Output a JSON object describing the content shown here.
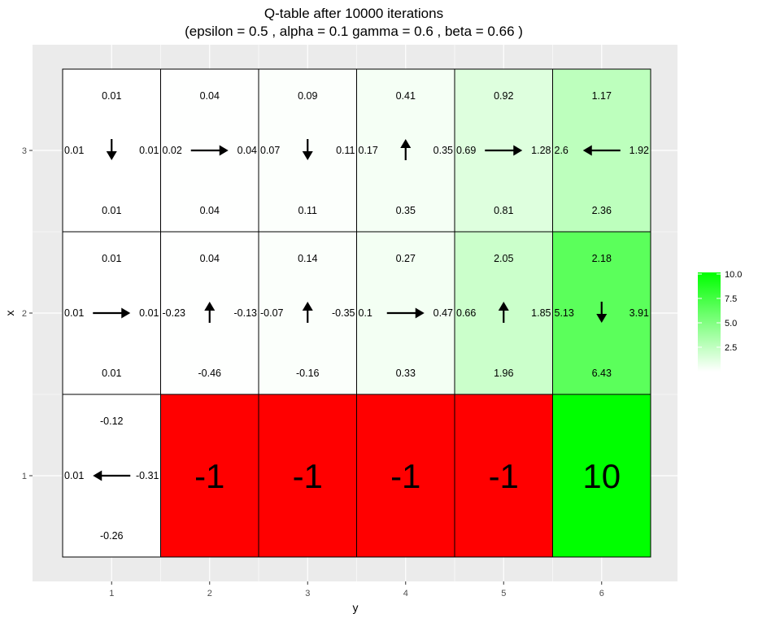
{
  "chart_data": {
    "type": "heatmap",
    "title": "Q-table after  10000  iterations",
    "subtitle": "(epsilon =  0.5 , alpha =  0.1 gamma =  0.6 , beta =  0.66 )",
    "xlabel": "y",
    "ylabel": "x",
    "x_ticks": [
      "1",
      "2",
      "3",
      "4",
      "5",
      "6"
    ],
    "y_ticks": [
      "1",
      "2",
      "3"
    ],
    "grid": true,
    "legend": {
      "position": "right",
      "ticks": [
        "2.5",
        "5.0",
        "7.5",
        "10.0"
      ],
      "tick_values": [
        2.5,
        5.0,
        7.5,
        10.0
      ],
      "min": 0,
      "max": 10,
      "low_color": "#ffffff",
      "high_color": "#00ff00"
    },
    "colors": {
      "negative_reward": "#ff0000",
      "panel_background": "#ebebeb",
      "gridline": "#ffffff"
    },
    "cells": [
      {
        "x": 3,
        "y": 1,
        "up": "0.01",
        "down": "0.01",
        "left": "0.01",
        "right": "0.01",
        "arrow": "down",
        "value": 0.01
      },
      {
        "x": 3,
        "y": 2,
        "up": "0.04",
        "down": "0.04",
        "left": "0.02",
        "right": "0.04",
        "arrow": "right",
        "value": 0.04
      },
      {
        "x": 3,
        "y": 3,
        "up": "0.09",
        "down": "0.11",
        "left": "0.07",
        "right": "0.11",
        "arrow": "down",
        "value": 0.11
      },
      {
        "x": 3,
        "y": 4,
        "up": "0.41",
        "down": "0.35",
        "left": "0.17",
        "right": "0.35",
        "arrow": "up",
        "value": 0.41
      },
      {
        "x": 3,
        "y": 5,
        "up": "0.92",
        "down": "0.81",
        "left": "0.69",
        "right": "1.28",
        "arrow": "right",
        "value": 1.28
      },
      {
        "x": 3,
        "y": 6,
        "up": "1.17",
        "down": "2.36",
        "left": "2.6",
        "right": "1.92",
        "arrow": "left",
        "value": 2.6
      },
      {
        "x": 2,
        "y": 1,
        "up": "0.01",
        "down": "0.01",
        "left": "0.01",
        "right": "0.01",
        "arrow": "right",
        "value": 0.01
      },
      {
        "x": 2,
        "y": 2,
        "up": "0.04",
        "down": "-0.46",
        "left": "-0.23",
        "right": "-0.13",
        "arrow": "up",
        "value": 0.04
      },
      {
        "x": 2,
        "y": 3,
        "up": "0.14",
        "down": "-0.16",
        "left": "-0.07",
        "right": "-0.35",
        "arrow": "up",
        "value": 0.14
      },
      {
        "x": 2,
        "y": 4,
        "up": "0.27",
        "down": "0.33",
        "left": "0.1",
        "right": "0.47",
        "arrow": "right",
        "value": 0.47
      },
      {
        "x": 2,
        "y": 5,
        "up": "2.05",
        "down": "1.96",
        "left": "0.66",
        "right": "1.85",
        "arrow": "up",
        "value": 2.05
      },
      {
        "x": 2,
        "y": 6,
        "up": "2.18",
        "down": "6.43",
        "left": "5.13",
        "right": "3.91",
        "arrow": "down",
        "value": 6.43
      },
      {
        "x": 1,
        "y": 1,
        "up": "-0.12",
        "down": "-0.26",
        "left": "0.01",
        "right": "-0.31",
        "arrow": "left",
        "value": 0.01
      }
    ],
    "rewards": [
      {
        "x": 1,
        "y": 2,
        "label": "-1",
        "value": -1
      },
      {
        "x": 1,
        "y": 3,
        "label": "-1",
        "value": -1
      },
      {
        "x": 1,
        "y": 4,
        "label": "-1",
        "value": -1
      },
      {
        "x": 1,
        "y": 5,
        "label": "-1",
        "value": -1
      },
      {
        "x": 1,
        "y": 6,
        "label": "10",
        "value": 10
      }
    ]
  }
}
